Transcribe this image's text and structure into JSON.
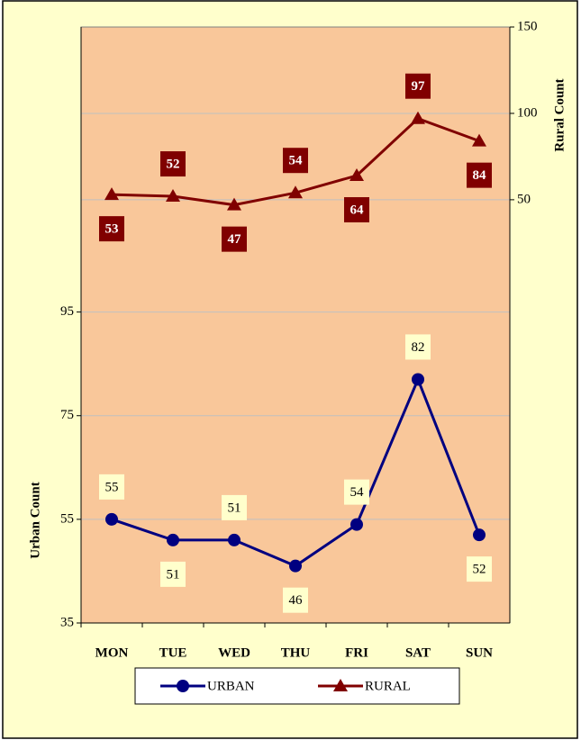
{
  "chart_data": {
    "type": "line",
    "categories": [
      "MON",
      "TUE",
      "WED",
      "THU",
      "FRI",
      "SAT",
      "SUN"
    ],
    "series": [
      {
        "name": "URBAN",
        "color": "#000080",
        "values": [
          55,
          51,
          51,
          46,
          54,
          82,
          52
        ],
        "axis": "y"
      },
      {
        "name": "RURAL",
        "color": "#800000",
        "values": [
          53,
          52,
          47,
          54,
          64,
          97,
          84
        ],
        "axis": "y2"
      }
    ],
    "ylabel": "Urban Count",
    "y2label": "Rural Count",
    "ylim": [
      35,
      150
    ],
    "yticks": [
      35,
      55,
      75,
      95
    ],
    "y2lim": [
      -195,
      150
    ],
    "y2ticks": [
      50,
      100,
      150
    ],
    "grid": true,
    "legend": "bottom"
  }
}
